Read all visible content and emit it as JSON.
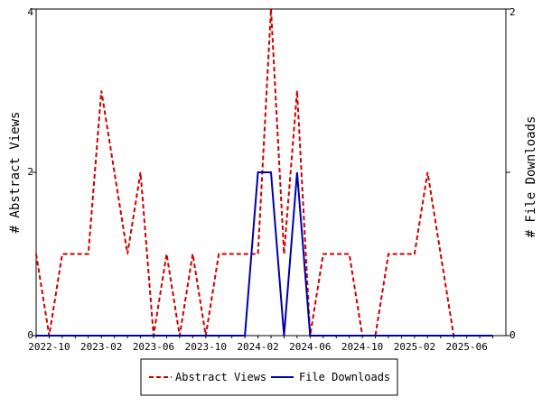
{
  "chart_data": {
    "type": "line",
    "x": [
      "2022-09",
      "2022-10",
      "2022-11",
      "2022-12",
      "2023-01",
      "2023-02",
      "2023-03",
      "2023-04",
      "2023-05",
      "2023-06",
      "2023-07",
      "2023-08",
      "2023-09",
      "2023-10",
      "2023-11",
      "2023-12",
      "2024-01",
      "2024-02",
      "2024-03",
      "2024-04",
      "2024-05",
      "2024-06",
      "2024-07",
      "2024-08",
      "2024-09",
      "2024-10",
      "2024-11",
      "2024-12",
      "2025-01",
      "2025-02",
      "2025-03",
      "2025-04",
      "2025-05",
      "2025-06",
      "2025-07",
      "2025-08"
    ],
    "x_tick_labels": [
      "2022-10",
      "2023-02",
      "2023-06",
      "2023-10",
      "2024-02",
      "2024-06",
      "2024-10",
      "2025-02",
      "2025-06"
    ],
    "series": [
      {
        "name": "Abstract Views",
        "axis": "left",
        "color": "#cc0000",
        "dash": "dashed",
        "values": [
          1,
          0,
          1,
          1,
          1,
          3,
          2,
          1,
          2,
          0,
          1,
          0,
          1,
          0,
          1,
          1,
          1,
          1,
          4,
          1,
          3,
          0,
          1,
          1,
          1,
          0,
          0,
          1,
          1,
          1,
          2,
          1,
          0,
          0,
          0,
          0
        ]
      },
      {
        "name": "File Downloads",
        "axis": "right",
        "color": "#0000aa",
        "dash": "solid",
        "values": [
          0,
          0,
          0,
          0,
          0,
          0,
          0,
          0,
          0,
          0,
          0,
          0,
          0,
          0,
          0,
          0,
          0,
          1,
          1,
          0,
          1,
          0,
          0,
          0,
          0,
          0,
          0,
          0,
          0,
          0,
          0,
          0,
          0,
          0,
          0,
          0
        ]
      }
    ],
    "ylabel_left": "# Abstract Views",
    "ylabel_right": "# File Downloads",
    "ylim_left": [
      0,
      4
    ],
    "ylim_right": [
      0,
      2
    ],
    "yticks_left": [
      "0",
      "2",
      "4"
    ],
    "yticks_right": [
      "0",
      "1",
      "2"
    ],
    "yticks_right_shown": [
      "0",
      "2"
    ],
    "grid": false,
    "legend_position": "bottom"
  }
}
